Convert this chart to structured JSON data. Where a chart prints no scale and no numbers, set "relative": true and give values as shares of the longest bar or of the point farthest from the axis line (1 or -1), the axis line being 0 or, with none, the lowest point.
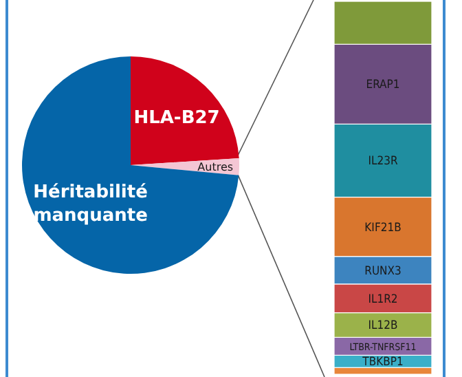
{
  "chart_data": [
    {
      "type": "pie",
      "categories": [
        "HLA-B27",
        "Autres",
        "Héritabilité manquante"
      ],
      "values": [
        24,
        2.5,
        73.5
      ],
      "colors": [
        "#d0021b",
        "#f4c6d4",
        "#0565a8"
      ]
    },
    {
      "type": "bar",
      "stacked": true,
      "relative": true,
      "categories": [
        null
      ],
      "series": [
        {
          "name": null,
          "color": "#e8863a",
          "values": [
            0.018
          ]
        },
        {
          "name": "TBKBP1",
          "color": "#3aafc8",
          "values": [
            0.033
          ]
        },
        {
          "name": "LTBR-TNFRSF11",
          "color": "#8a68a6",
          "values": [
            0.048
          ]
        },
        {
          "name": "IL12B",
          "color": "#9bb24a",
          "values": [
            0.066
          ]
        },
        {
          "name": "IL1R2",
          "color": "#c94746",
          "values": [
            0.077
          ]
        },
        {
          "name": "RUNX3",
          "color": "#3d84bf",
          "values": [
            0.074
          ]
        },
        {
          "name": "KIF21B",
          "color": "#d9762e",
          "values": [
            0.159
          ]
        },
        {
          "name": "IL23R",
          "color": "#1f8ea0",
          "values": [
            0.196
          ]
        },
        {
          "name": "ERAP1",
          "color": "#6b4c7f",
          "values": [
            0.214
          ]
        },
        {
          "name": null,
          "color": "#7f9a3a",
          "values": [
            0.115
          ]
        }
      ]
    }
  ]
}
